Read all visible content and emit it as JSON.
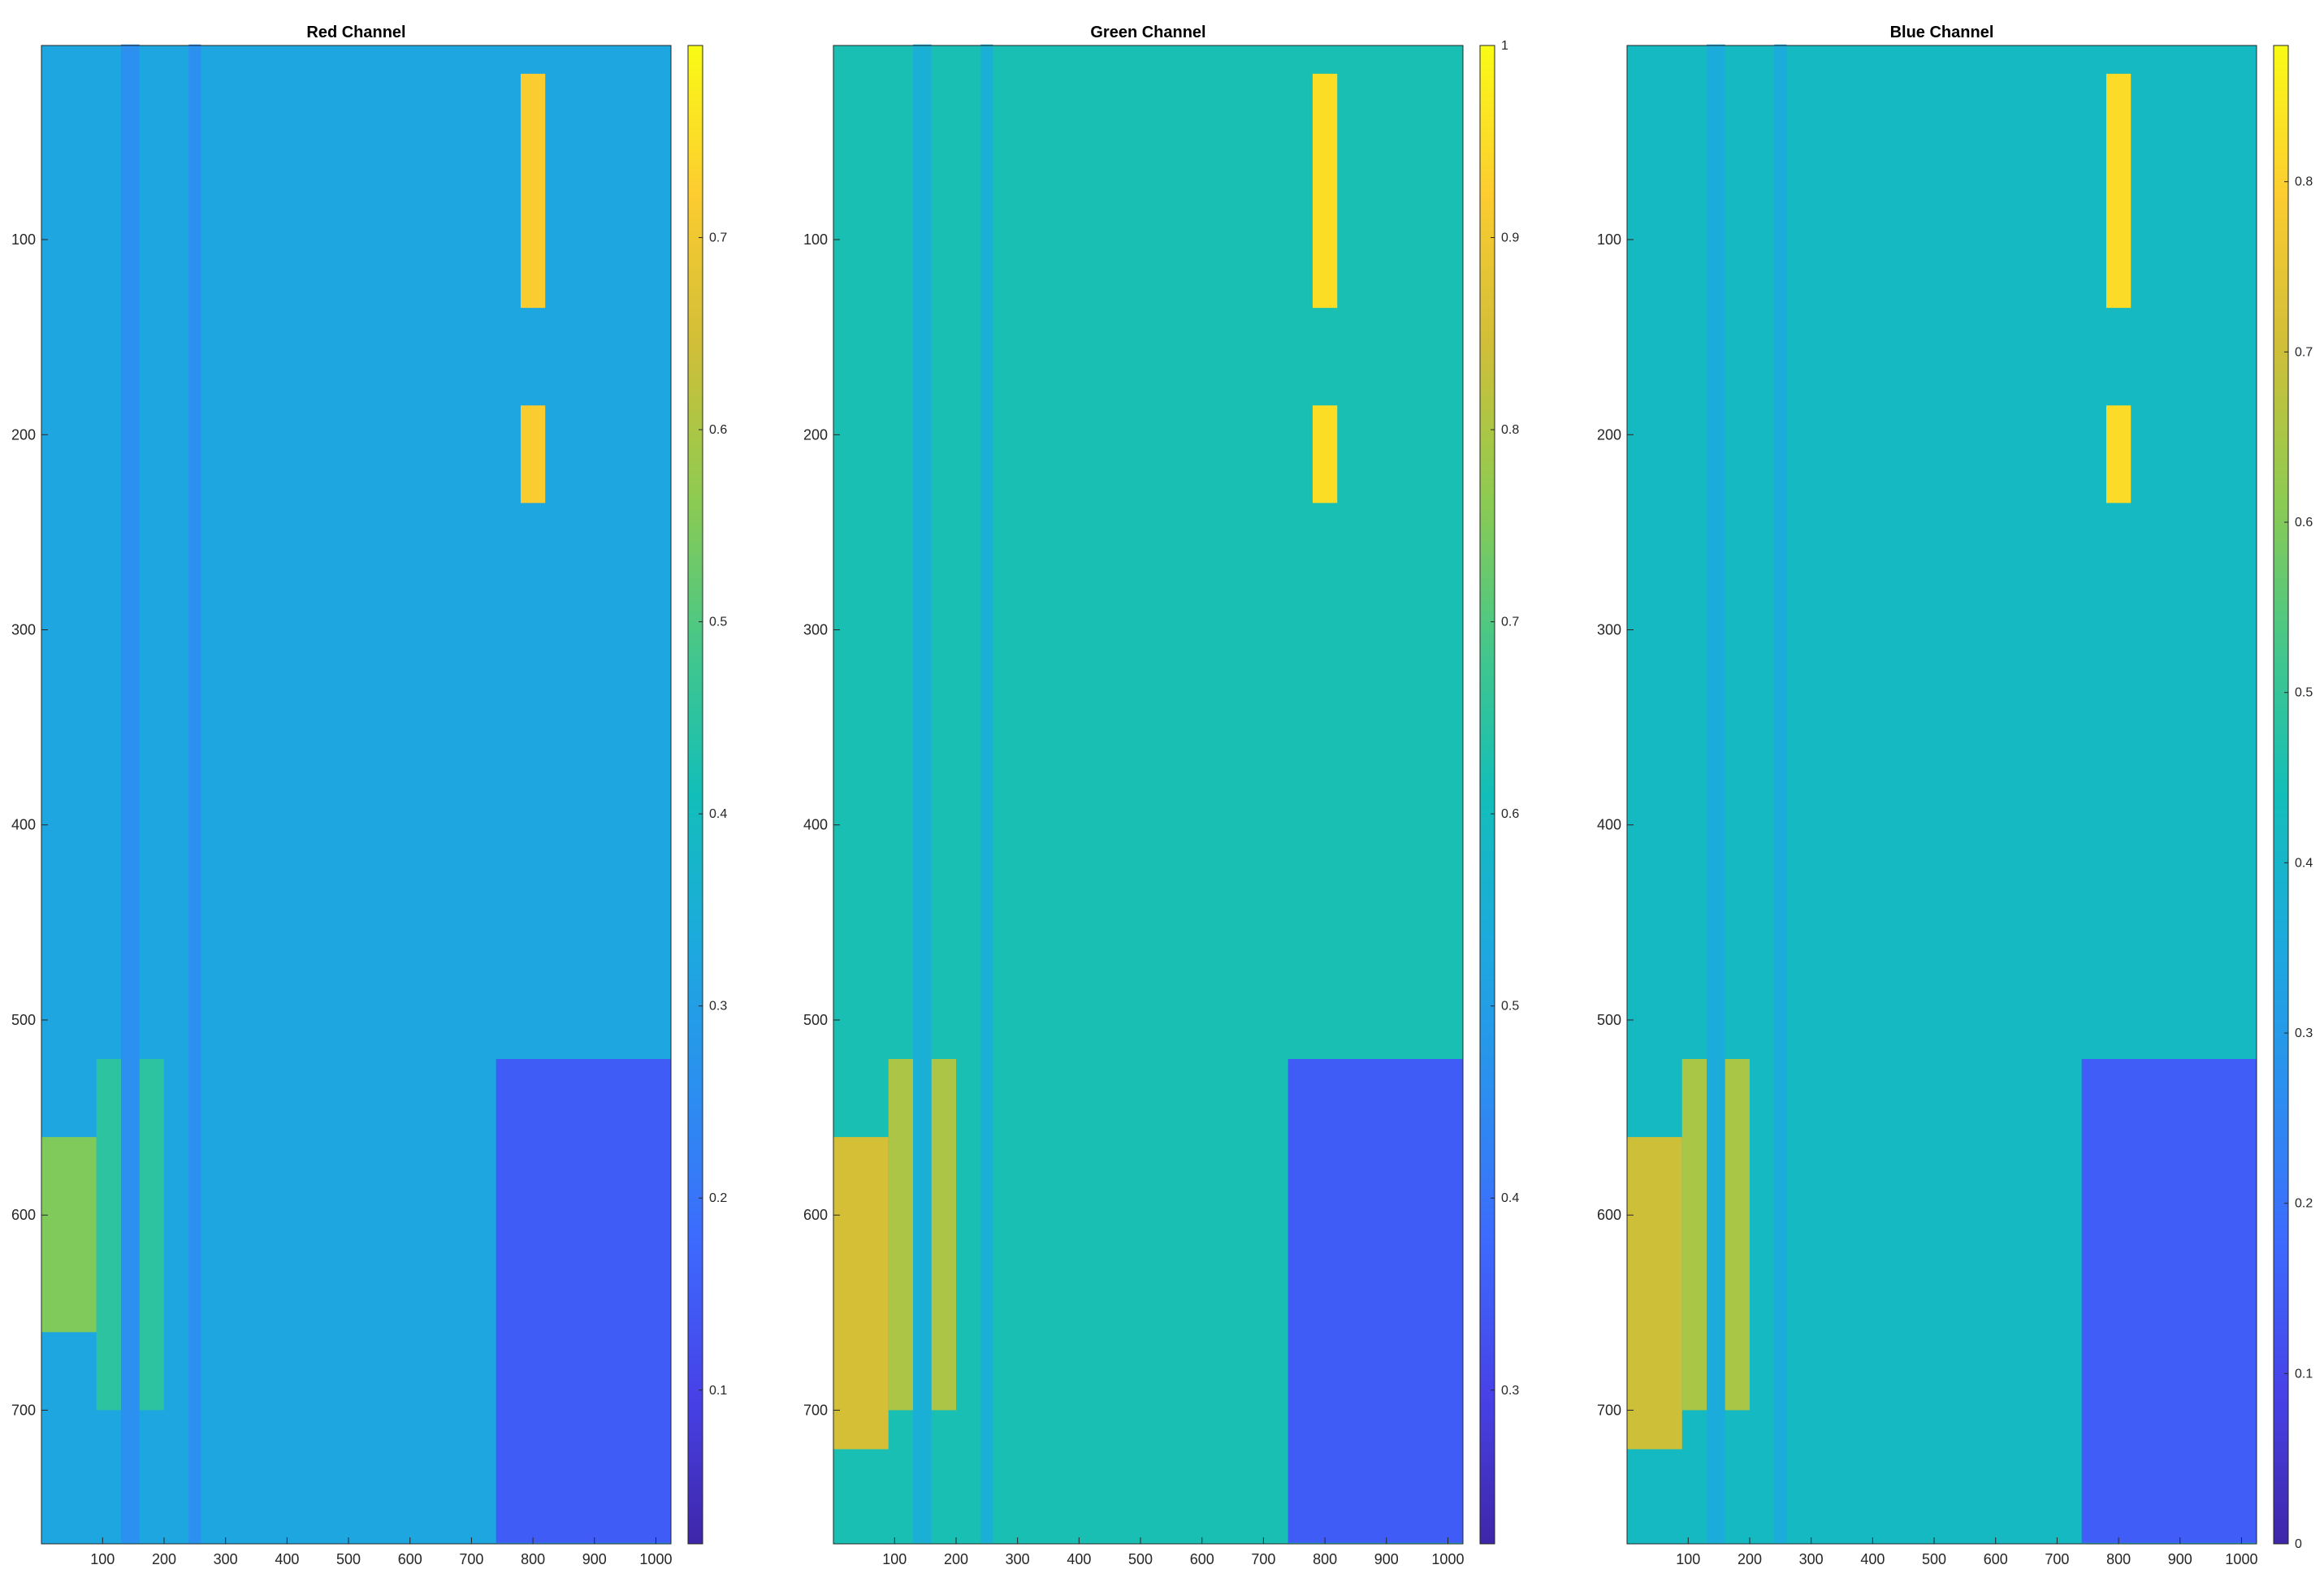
{
  "chart_data": [
    {
      "type": "heatmap",
      "title": "Red Channel",
      "xlim": [
        0.5,
        1024.5
      ],
      "ylim": [
        0.5,
        768.5
      ],
      "y_reversed": true,
      "xticks": [
        100,
        200,
        300,
        400,
        500,
        600,
        700,
        800,
        900,
        1000
      ],
      "yticks": [
        100,
        200,
        300,
        400,
        500,
        600,
        700
      ],
      "colorbar": {
        "colormap": "parula",
        "clim": [
          0.02,
          0.8
        ],
        "ticks": [
          0.1,
          0.2,
          0.3,
          0.4,
          0.5,
          0.6,
          0.7
        ]
      },
      "base_level": 0.32,
      "regions": [
        {
          "x": [
            780,
            820
          ],
          "y": [
            15,
            135
          ],
          "value": 0.72
        },
        {
          "x": [
            780,
            820
          ],
          "y": [
            185,
            235
          ],
          "value": 0.72
        },
        {
          "x": [
            0,
            90
          ],
          "y": [
            560,
            660
          ],
          "value": 0.55
        },
        {
          "x": [
            90,
            200
          ],
          "y": [
            520,
            700
          ],
          "value": 0.45
        },
        {
          "x": [
            740,
            1024
          ],
          "y": [
            520,
            768
          ],
          "value": 0.15
        },
        {
          "x": [
            130,
            160
          ],
          "y": [
            0,
            768
          ],
          "value": 0.26
        },
        {
          "x": [
            240,
            260
          ],
          "y": [
            0,
            768
          ],
          "value": 0.26
        }
      ]
    },
    {
      "type": "heatmap",
      "title": "Green Channel",
      "xlim": [
        0.5,
        1024.5
      ],
      "ylim": [
        0.5,
        768.5
      ],
      "y_reversed": true,
      "xticks": [
        100,
        200,
        300,
        400,
        500,
        600,
        700,
        800,
        900,
        1000
      ],
      "yticks": [
        100,
        200,
        300,
        400,
        500,
        600,
        700
      ],
      "colorbar": {
        "colormap": "parula",
        "clim": [
          0.22,
          1.0
        ],
        "ticks": [
          0.3,
          0.4,
          0.5,
          0.6,
          0.7,
          0.8,
          0.9,
          1
        ]
      },
      "base_level": 0.62,
      "regions": [
        {
          "x": [
            780,
            820
          ],
          "y": [
            15,
            135
          ],
          "value": 0.95
        },
        {
          "x": [
            780,
            820
          ],
          "y": [
            185,
            235
          ],
          "value": 0.95
        },
        {
          "x": [
            0,
            90
          ],
          "y": [
            560,
            720
          ],
          "value": 0.85
        },
        {
          "x": [
            90,
            200
          ],
          "y": [
            520,
            700
          ],
          "value": 0.8
        },
        {
          "x": [
            740,
            1024
          ],
          "y": [
            520,
            768
          ],
          "value": 0.35
        },
        {
          "x": [
            130,
            160
          ],
          "y": [
            0,
            768
          ],
          "value": 0.55
        },
        {
          "x": [
            240,
            260
          ],
          "y": [
            0,
            768
          ],
          "value": 0.55
        }
      ]
    },
    {
      "type": "heatmap",
      "title": "Blue Channel",
      "xlim": [
        0.5,
        1024.5
      ],
      "ylim": [
        0.5,
        768.5
      ],
      "y_reversed": true,
      "xticks": [
        100,
        200,
        300,
        400,
        500,
        600,
        700,
        800,
        900,
        1000
      ],
      "yticks": [
        100,
        200,
        300,
        400,
        500,
        600,
        700
      ],
      "colorbar": {
        "colormap": "parula",
        "clim": [
          0.0,
          0.88
        ],
        "ticks": [
          0,
          0.1,
          0.2,
          0.3,
          0.4,
          0.5,
          0.6,
          0.7,
          0.8
        ]
      },
      "base_level": 0.42,
      "regions": [
        {
          "x": [
            780,
            820
          ],
          "y": [
            15,
            135
          ],
          "value": 0.82
        },
        {
          "x": [
            780,
            820
          ],
          "y": [
            185,
            235
          ],
          "value": 0.82
        },
        {
          "x": [
            0,
            90
          ],
          "y": [
            560,
            720
          ],
          "value": 0.7
        },
        {
          "x": [
            90,
            200
          ],
          "y": [
            520,
            700
          ],
          "value": 0.65
        },
        {
          "x": [
            740,
            1024
          ],
          "y": [
            520,
            768
          ],
          "value": 0.15
        },
        {
          "x": [
            130,
            160
          ],
          "y": [
            0,
            768
          ],
          "value": 0.36
        },
        {
          "x": [
            240,
            260
          ],
          "y": [
            0,
            768
          ],
          "value": 0.36
        }
      ]
    }
  ]
}
